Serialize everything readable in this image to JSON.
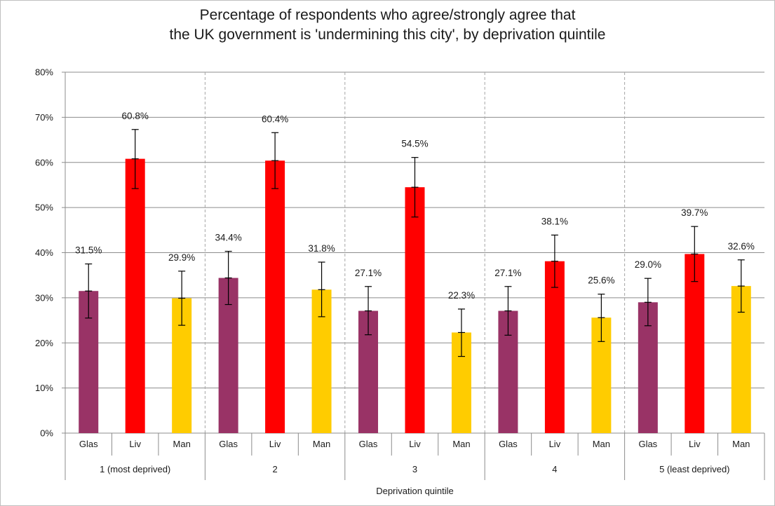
{
  "chart_data": {
    "type": "bar",
    "title_lines": [
      "Percentage of respondents who agree/strongly agree that",
      "the UK government is 'undermining this city', by deprivation quintile"
    ],
    "xlabel": "Deprivation quintile",
    "ylabel": "",
    "ylim": [
      0,
      80
    ],
    "ytick_step": 10,
    "ytick_labels": [
      "0%",
      "10%",
      "20%",
      "30%",
      "40%",
      "50%",
      "60%",
      "70%",
      "80%"
    ],
    "grid": true,
    "legend": "none",
    "groups": [
      "1 (most deprived)",
      "2",
      "3",
      "4",
      "5 (least deprived)"
    ],
    "cities": [
      "Glas",
      "Liv",
      "Man"
    ],
    "colors": {
      "Glas": "#993366",
      "Liv": "#ff0000",
      "Man": "#ffcc00"
    },
    "bars": [
      {
        "group": "1 (most deprived)",
        "city": "Glas",
        "value": 31.5,
        "label": "31.5%",
        "err_low": 25.5,
        "err_high": 37.5
      },
      {
        "group": "1 (most deprived)",
        "city": "Liv",
        "value": 60.8,
        "label": "60.8%",
        "err_low": 54.2,
        "err_high": 67.3
      },
      {
        "group": "1 (most deprived)",
        "city": "Man",
        "value": 29.9,
        "label": "29.9%",
        "err_low": 23.9,
        "err_high": 35.9
      },
      {
        "group": "2",
        "city": "Glas",
        "value": 34.4,
        "label": "34.4%",
        "err_low": 28.5,
        "err_high": 40.3
      },
      {
        "group": "2",
        "city": "Liv",
        "value": 60.4,
        "label": "60.4%",
        "err_low": 54.2,
        "err_high": 66.6
      },
      {
        "group": "2",
        "city": "Man",
        "value": 31.8,
        "label": "31.8%",
        "err_low": 25.8,
        "err_high": 37.9
      },
      {
        "group": "3",
        "city": "Glas",
        "value": 27.1,
        "label": "27.1%",
        "err_low": 21.8,
        "err_high": 32.5
      },
      {
        "group": "3",
        "city": "Liv",
        "value": 54.5,
        "label": "54.5%",
        "err_low": 47.9,
        "err_high": 61.1
      },
      {
        "group": "3",
        "city": "Man",
        "value": 22.3,
        "label": "22.3%",
        "err_low": 17.0,
        "err_high": 27.5
      },
      {
        "group": "4",
        "city": "Glas",
        "value": 27.1,
        "label": "27.1%",
        "err_low": 21.7,
        "err_high": 32.5
      },
      {
        "group": "4",
        "city": "Liv",
        "value": 38.1,
        "label": "38.1%",
        "err_low": 32.3,
        "err_high": 43.9
      },
      {
        "group": "4",
        "city": "Man",
        "value": 25.6,
        "label": "25.6%",
        "err_low": 20.3,
        "err_high": 30.8
      },
      {
        "group": "5 (least deprived)",
        "city": "Glas",
        "value": 29.0,
        "label": "29.0%",
        "err_low": 23.8,
        "err_high": 34.3
      },
      {
        "group": "5 (least deprived)",
        "city": "Liv",
        "value": 39.7,
        "label": "39.7%",
        "err_low": 33.6,
        "err_high": 45.8
      },
      {
        "group": "5 (least deprived)",
        "city": "Man",
        "value": 32.6,
        "label": "32.6%",
        "err_low": 26.8,
        "err_high": 38.4
      }
    ]
  }
}
